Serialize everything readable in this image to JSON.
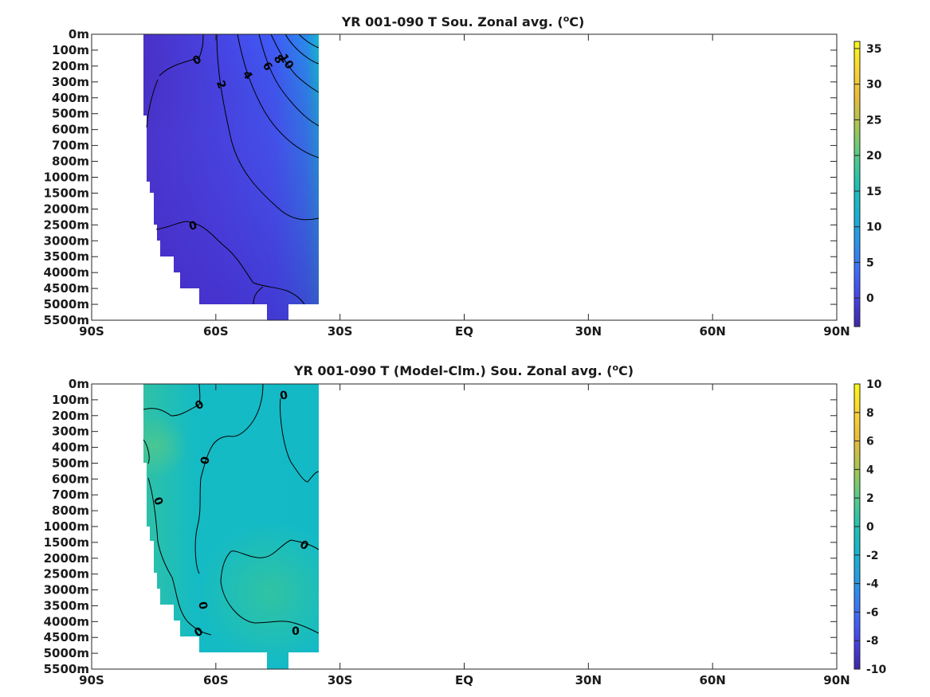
{
  "chart_data": [
    {
      "type": "heatmap",
      "title": "YR 001-090 T Sou. Zonal avg. (",
      "title_unit": "o",
      "title_suffix": "C)",
      "y_ticks": [
        "0m",
        "100m",
        "200m",
        "300m",
        "400m",
        "500m",
        "600m",
        "700m",
        "800m",
        "1000m",
        "1500m",
        "2000m",
        "2500m",
        "3000m",
        "3500m",
        "4000m",
        "4500m",
        "5000m",
        "5500m"
      ],
      "x_ticks": [
        "90S",
        "60S",
        "30S",
        "EQ",
        "30N",
        "60N",
        "90N"
      ],
      "xlim": [
        -90,
        90
      ],
      "colorbar": {
        "min": -4,
        "max": 36,
        "ticks": [
          0,
          5,
          10,
          15,
          20,
          25,
          30,
          35
        ]
      },
      "data_extent_lat": [
        -77.5,
        -35
      ],
      "contour_labels": [
        "0",
        "2",
        "4",
        "6",
        "8",
        "10",
        "0"
      ],
      "field_range": [
        -2,
        15
      ]
    },
    {
      "type": "heatmap",
      "title": "YR 001-090 T (Model-Clm.) Sou. Zonal avg. (",
      "title_unit": "o",
      "title_suffix": "C)",
      "y_ticks": [
        "0m",
        "100m",
        "200m",
        "300m",
        "400m",
        "500m",
        "600m",
        "700m",
        "800m",
        "1000m",
        "1500m",
        "2000m",
        "2500m",
        "3000m",
        "3500m",
        "4000m",
        "4500m",
        "5000m",
        "5500m"
      ],
      "x_ticks": [
        "90S",
        "60S",
        "30S",
        "EQ",
        "30N",
        "60N",
        "90N"
      ],
      "xlim": [
        -90,
        90
      ],
      "colorbar": {
        "min": -10,
        "max": 10,
        "ticks": [
          -10,
          -8,
          -6,
          -4,
          -2,
          0,
          2,
          4,
          6,
          8,
          10
        ]
      },
      "data_extent_lat": [
        -77.5,
        -35
      ],
      "contour_labels": [
        "0",
        "0",
        "0",
        "0",
        "0",
        "0",
        "0",
        "0"
      ],
      "field_range": [
        -0.5,
        1.5
      ]
    }
  ],
  "colors": {
    "parula_stops": [
      "#3e26a8",
      "#4743e9",
      "#3d70fd",
      "#2797eb",
      "#16b3d2",
      "#1ec3b2",
      "#55cc89",
      "#a5c752",
      "#e6bb3a",
      "#fcd531",
      "#f9fb15"
    ],
    "axis": "#262626",
    "contour": "#000000"
  }
}
